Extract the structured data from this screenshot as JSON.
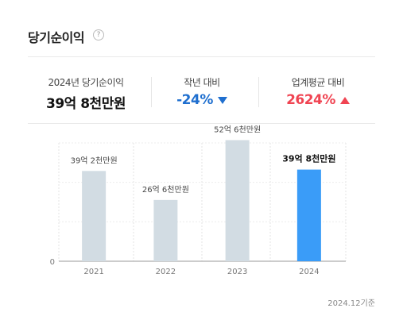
{
  "header": {
    "title": "당기순이익",
    "help_glyph": "?"
  },
  "summary": {
    "net_income": {
      "label": "2024년 당기순이익",
      "value": "39억 8천만원"
    },
    "yoy": {
      "label": "작년 대비",
      "value": "-24%",
      "direction": "down",
      "color": "#1f6fcf"
    },
    "industry": {
      "label": "업계평균 대비",
      "value": "2624%",
      "direction": "up",
      "color": "#f04452"
    }
  },
  "chart_data": {
    "type": "bar",
    "categories": [
      "2021",
      "2022",
      "2023",
      "2024"
    ],
    "values": [
      3920000000,
      2660000000,
      5260000000,
      3980000000
    ],
    "data_labels": [
      "39억 2천만원",
      "26억 6천만원",
      "52억 6천만원",
      "39억 8천만원"
    ],
    "highlight_index": 3,
    "ylim": [
      0,
      6000000000
    ],
    "y_tick_labels": [
      "0"
    ],
    "grid": true,
    "colors": {
      "bar": "#d2dce3",
      "highlight": "#3a9cf8",
      "label": "#444444",
      "highlight_label": "#111111"
    }
  },
  "footer": {
    "note": "2024.12기준"
  }
}
